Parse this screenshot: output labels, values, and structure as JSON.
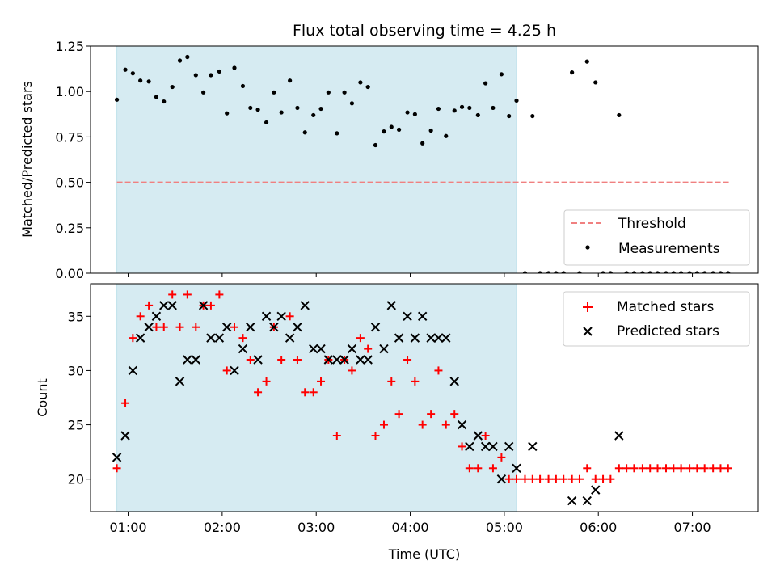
{
  "chart_data": [
    {
      "type": "scatter",
      "title": "Flux total observing time = 4.25 h",
      "ylabel": "Matched/Predicted stars",
      "xlabel": "",
      "xlim": [
        0.6,
        7.7
      ],
      "ylim": [
        0.0,
        1.25
      ],
      "yticks": [
        0.0,
        0.25,
        0.5,
        0.75,
        1.0,
        1.25
      ],
      "ytick_labels": [
        "0.00",
        "0.25",
        "0.50",
        "0.75",
        "1.00",
        "1.25"
      ],
      "shaded_span": [
        0.88,
        5.13
      ],
      "shade_color": "#add8e6",
      "legend_position": "lower-right",
      "threshold": {
        "name": "Threshold",
        "y": 0.5,
        "x_range": [
          0.88,
          7.4
        ],
        "color": "#f08080"
      },
      "series": [
        {
          "name": "Measurements",
          "color": "#000000",
          "x": [
            0.88,
            0.97,
            1.05,
            1.13,
            1.22,
            1.3,
            1.38,
            1.47,
            1.55,
            1.63,
            1.72,
            1.8,
            1.88,
            1.97,
            2.05,
            2.13,
            2.22,
            2.3,
            2.38,
            2.47,
            2.55,
            2.63,
            2.72,
            2.8,
            2.88,
            2.97,
            3.05,
            3.13,
            3.22,
            3.3,
            3.38,
            3.47,
            3.55,
            3.63,
            3.72,
            3.8,
            3.88,
            3.97,
            4.05,
            4.13,
            4.22,
            4.3,
            4.38,
            4.47,
            4.55,
            4.63,
            4.72,
            4.8,
            4.88,
            4.97,
            5.05,
            5.13,
            5.22,
            5.3,
            5.38,
            5.47,
            5.55,
            5.63,
            5.72,
            5.8,
            5.88,
            5.97,
            6.05,
            6.13,
            6.22,
            6.3,
            6.38,
            6.47,
            6.55,
            6.63,
            6.72,
            6.8,
            6.88,
            6.97,
            7.05,
            7.13,
            7.22,
            7.3,
            7.38
          ],
          "y": [
            0.955,
            1.12,
            1.1,
            1.06,
            1.055,
            0.97,
            0.945,
            1.025,
            1.17,
            1.19,
            1.09,
            0.995,
            1.09,
            1.11,
            0.88,
            1.13,
            1.03,
            0.91,
            0.9,
            0.83,
            0.995,
            0.885,
            1.06,
            0.91,
            0.775,
            0.87,
            0.905,
            0.995,
            0.77,
            0.995,
            0.935,
            1.05,
            1.025,
            0.705,
            0.78,
            0.805,
            0.79,
            0.885,
            0.875,
            0.715,
            0.785,
            0.905,
            0.755,
            0.895,
            0.915,
            0.91,
            0.87,
            1.045,
            0.91,
            1.095,
            0.865,
            0.95,
            0.0,
            0.865,
            0.0,
            0.0,
            0.0,
            0.0,
            1.105,
            0.0,
            1.165,
            1.05,
            0.0,
            0.0,
            0.87,
            0.0,
            0.0,
            0.0,
            0.0,
            0.0,
            0.0,
            0.0,
            0.0,
            0.0,
            0.0,
            0.0,
            0.0,
            0.0,
            0.0
          ]
        }
      ]
    },
    {
      "type": "scatter",
      "title": "",
      "ylabel": "Count",
      "xlabel": "Time (UTC)",
      "xlim": [
        0.6,
        7.7
      ],
      "ylim": [
        17,
        38
      ],
      "yticks": [
        20,
        25,
        30,
        35
      ],
      "ytick_labels": [
        "20",
        "25",
        "30",
        "35"
      ],
      "xticks": [
        1,
        2,
        3,
        4,
        5,
        6,
        7
      ],
      "xtick_labels": [
        "01:00",
        "02:00",
        "03:00",
        "04:00",
        "05:00",
        "06:00",
        "07:00"
      ],
      "shaded_span": [
        0.88,
        5.13
      ],
      "shade_color": "#add8e6",
      "legend_position": "top-right",
      "series": [
        {
          "name": "Matched stars",
          "color": "#ff0000",
          "marker": "plus",
          "x": [
            0.88,
            0.97,
            1.05,
            1.13,
            1.22,
            1.3,
            1.38,
            1.47,
            1.55,
            1.63,
            1.72,
            1.8,
            1.88,
            1.97,
            2.05,
            2.13,
            2.22,
            2.3,
            2.38,
            2.47,
            2.55,
            2.63,
            2.72,
            2.8,
            2.88,
            2.97,
            3.05,
            3.13,
            3.22,
            3.3,
            3.38,
            3.47,
            3.55,
            3.63,
            3.72,
            3.8,
            3.88,
            3.97,
            4.05,
            4.13,
            4.22,
            4.3,
            4.38,
            4.47,
            4.55,
            4.63,
            4.72,
            4.8,
            4.88,
            4.97,
            5.05,
            5.13,
            5.22,
            5.3,
            5.38,
            5.47,
            5.55,
            5.63,
            5.72,
            5.8,
            5.88,
            5.97,
            6.05,
            6.13,
            6.22,
            6.3,
            6.38,
            6.47,
            6.55,
            6.63,
            6.72,
            6.8,
            6.88,
            6.97,
            7.05,
            7.13,
            7.22,
            7.3,
            7.38
          ],
          "y": [
            21,
            27,
            33,
            35,
            36,
            34,
            34,
            37,
            34,
            37,
            34,
            36,
            36,
            37,
            30,
            34,
            33,
            31,
            28,
            29,
            34,
            31,
            35,
            31,
            28,
            28,
            29,
            31,
            24,
            31,
            30,
            33,
            32,
            24,
            25,
            29,
            26,
            31,
            29,
            25,
            26,
            30,
            25,
            26,
            23,
            21,
            21,
            24,
            21,
            22,
            20,
            20,
            20,
            20,
            20,
            20,
            20,
            20,
            20,
            20,
            21,
            20,
            20,
            20,
            21,
            21,
            21,
            21,
            21,
            21,
            21,
            21,
            21,
            21,
            21,
            21,
            21,
            21,
            21
          ]
        },
        {
          "name": "Predicted stars",
          "color": "#000000",
          "marker": "x",
          "x": [
            0.88,
            0.97,
            1.05,
            1.13,
            1.22,
            1.3,
            1.38,
            1.47,
            1.55,
            1.63,
            1.72,
            1.8,
            1.88,
            1.97,
            2.05,
            2.13,
            2.22,
            2.3,
            2.38,
            2.47,
            2.55,
            2.63,
            2.72,
            2.8,
            2.88,
            2.97,
            3.05,
            3.13,
            3.22,
            3.3,
            3.38,
            3.47,
            3.55,
            3.63,
            3.72,
            3.8,
            3.88,
            3.97,
            4.05,
            4.13,
            4.22,
            4.3,
            4.38,
            4.47,
            4.55,
            4.63,
            4.72,
            4.8,
            4.88,
            4.97,
            5.05,
            5.13,
            5.3,
            5.72,
            5.88,
            5.97,
            6.22
          ],
          "y": [
            22,
            24,
            30,
            33,
            34,
            35,
            36,
            36,
            29,
            31,
            31,
            36,
            33,
            33,
            34,
            30,
            32,
            34,
            31,
            35,
            34,
            35,
            33,
            34,
            36,
            32,
            32,
            31,
            31,
            31,
            32,
            31,
            31,
            34,
            32,
            36,
            33,
            35,
            33,
            35,
            33,
            33,
            33,
            29,
            25,
            23,
            24,
            23,
            23,
            20,
            23,
            21,
            23,
            18,
            18,
            19,
            24
          ]
        }
      ]
    }
  ]
}
